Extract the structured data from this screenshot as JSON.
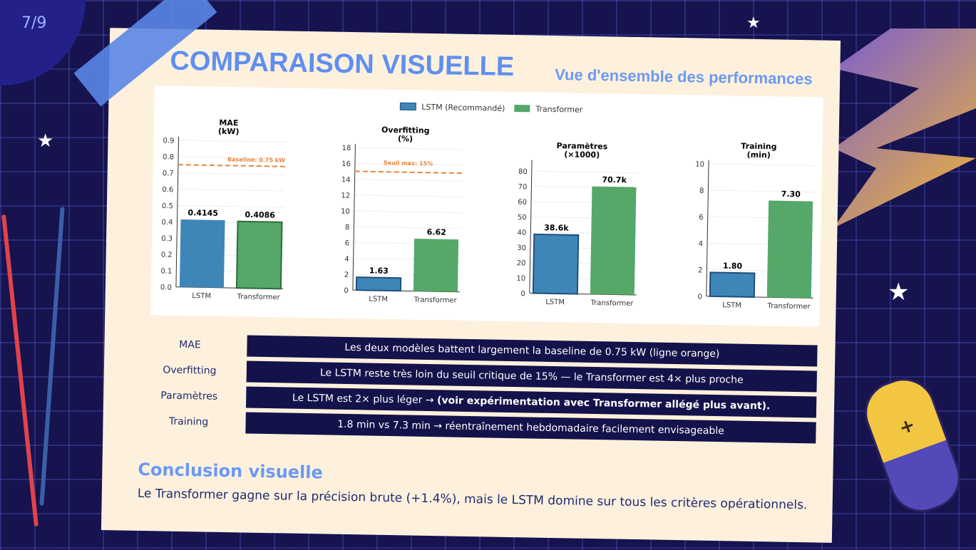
{
  "page_number": "7/9",
  "header": {
    "title": "COMPARAISON VISUELLE",
    "subtitle": "Vue d'ensemble des performances"
  },
  "colors": {
    "lstm": "#3f86b8",
    "transformer": "#55a868",
    "threshold": "#e8833a",
    "navy": "#14124a",
    "accent": "#6b99f2"
  },
  "chart_data": [
    {
      "type": "bar",
      "title": "MAE\n(kW)",
      "categories": [
        "LSTM",
        "Transformer"
      ],
      "values": [
        0.4145,
        0.4086
      ],
      "labels": [
        "0.4145",
        "0.4086"
      ],
      "ylim": [
        0,
        0.9
      ],
      "yticks": [
        0.0,
        0.1,
        0.2,
        0.3,
        0.4,
        0.5,
        0.6,
        0.7,
        0.8,
        0.9
      ],
      "ytick_labels": [
        "0.0",
        "0.1",
        "0.2",
        "0.3",
        "0.4",
        "0.5",
        "0.6",
        "0.7",
        "0.8",
        "0.9"
      ],
      "hline": {
        "value": 0.75,
        "label": "Baseline: 0.75 kW"
      },
      "legend": [
        "LSTM (Recommandé)",
        "Transformer"
      ],
      "legend_position": "top-center",
      "grid": true
    },
    {
      "type": "bar",
      "title": "Overfitting\n(%)",
      "categories": [
        "LSTM",
        "Transformer"
      ],
      "values": [
        1.63,
        6.62
      ],
      "labels": [
        "1.63",
        "6.62"
      ],
      "ylim": [
        0,
        18
      ],
      "yticks": [
        0,
        2,
        4,
        6,
        8,
        10,
        12,
        14,
        16,
        18
      ],
      "ytick_labels": [
        "0",
        "2",
        "4",
        "6",
        "8",
        "10",
        "12",
        "14",
        "16",
        "18"
      ],
      "hline": {
        "value": 15,
        "label": "Seuil max: 15%"
      },
      "grid": true
    },
    {
      "type": "bar",
      "title": "Paramètres\n(×1000)",
      "categories": [
        "LSTM",
        "Transformer"
      ],
      "values": [
        38.6,
        70.7
      ],
      "labels": [
        "38.6k",
        "70.7k"
      ],
      "ylim": [
        0,
        85
      ],
      "yticks": [
        0,
        10,
        20,
        30,
        40,
        50,
        60,
        70,
        80
      ],
      "ytick_labels": [
        "0",
        "10",
        "20",
        "30",
        "40",
        "50",
        "60",
        "70",
        "80"
      ],
      "grid": true
    },
    {
      "type": "bar",
      "title": "Training\n(min)",
      "categories": [
        "LSTM",
        "Transformer"
      ],
      "values": [
        1.8,
        7.3
      ],
      "labels": [
        "1.80",
        "7.30"
      ],
      "ylim": [
        0,
        10
      ],
      "yticks": [
        0,
        2,
        4,
        6,
        8,
        10
      ],
      "ytick_labels": [
        "0",
        "2",
        "4",
        "6",
        "8",
        "10"
      ],
      "grid": true
    }
  ],
  "rows": [
    {
      "label": "MAE",
      "text": "Les deux modèles battent largement la baseline de 0.75 kW (ligne orange)",
      "bold": ""
    },
    {
      "label": "Overfitting",
      "text": "Le LSTM reste très loin du seuil critique de 15% — le Transformer est 4× plus proche",
      "bold": ""
    },
    {
      "label": "Paramètres",
      "text": "Le LSTM est 2× plus léger → ",
      "bold": "(voir expérimentation avec Transformer allégé plus avant)."
    },
    {
      "label": "Training",
      "text": "1.8 min vs 7.3 min → réentraînement hebdomadaire facilement envisageable",
      "bold": ""
    }
  ],
  "conclusion": {
    "title": "Conclusion visuelle",
    "text": "Le Transformer gagne sur la précision brute (+1.4%), mais le LSTM domine sur tous les critères opérationnels."
  }
}
